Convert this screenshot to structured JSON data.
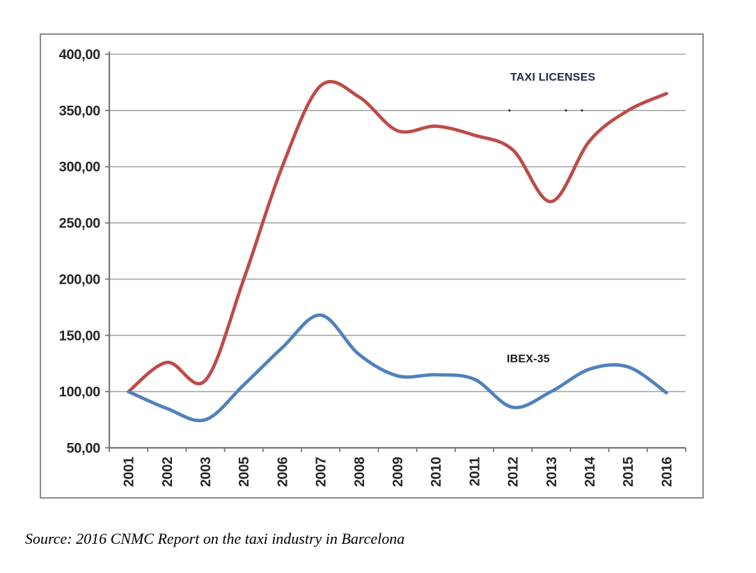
{
  "figure": {
    "series_labels": {
      "taxi": "TAXI LICENSES",
      "ibex": "IBEX-35"
    },
    "source_caption": "Source: 2016 CNMC Report on the taxi industry in Barcelona",
    "artifact_dots_on_350_gridline_x": [
      732,
      813,
      836
    ]
  },
  "colors": {
    "taxi_line": "#BE4B48",
    "ibex_line": "#4F81BD",
    "gridline": "#A6A6A6",
    "axis": "#767676",
    "figure_border": "#8A8A8A",
    "tick_label_text": "#262626",
    "artifact_dot": "#3A3F52"
  },
  "chart_data": {
    "type": "line",
    "smoothed": true,
    "title": "",
    "xlabel": "",
    "ylabel": "",
    "grid": "horizontal-only",
    "legend": "inline-text-labels",
    "categories": [
      "2001",
      "2002",
      "2003",
      "2005",
      "2006",
      "2007",
      "2008",
      "2009",
      "2010",
      "2011",
      "2012",
      "2013",
      "2014",
      "2015",
      "2016"
    ],
    "series": [
      {
        "name": "TAXI LICENSES",
        "color": "#BE4B48",
        "values": [
          100,
          126,
          110,
          200,
          300,
          372,
          362,
          332,
          336,
          328,
          315,
          269,
          323,
          350,
          365
        ]
      },
      {
        "name": "IBEX-35",
        "color": "#4F81BD",
        "values": [
          100,
          85,
          75,
          106,
          139,
          168,
          133,
          114,
          115,
          111,
          86,
          100,
          120,
          122,
          99
        ]
      }
    ],
    "ylim": [
      50,
      400
    ],
    "ytick_step": 50,
    "ytick_labels": [
      "50,00",
      "100,00",
      "150,00",
      "200,00",
      "250,00",
      "300,00",
      "350,00",
      "400,00"
    ]
  }
}
